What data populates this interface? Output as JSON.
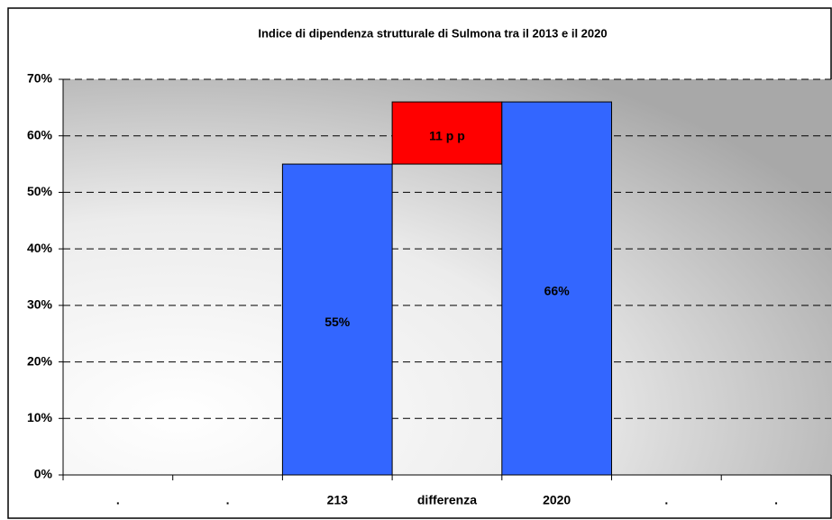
{
  "chart_data": {
    "type": "waterfall",
    "title": "Indice di dipendenza strutturale di Sulmona tra il 2013 e il 2020",
    "categories": [
      ".",
      ".",
      "213",
      "differenza",
      "2020",
      ".",
      "."
    ],
    "values": [
      null,
      null,
      55,
      11,
      66,
      null,
      null
    ],
    "value_labels": [
      null,
      null,
      "55%",
      "11 p p",
      "66%",
      null,
      null
    ],
    "measure": [
      null,
      null,
      "absolute",
      "relative",
      "absolute",
      null,
      null
    ],
    "colors": [
      null,
      null,
      "#3366ff",
      "#ff0000",
      "#3366ff",
      null,
      null
    ],
    "ylim": [
      0,
      70
    ],
    "yticks": [
      {
        "value": 0,
        "label": "0%"
      },
      {
        "value": 10,
        "label": "10%"
      },
      {
        "value": 20,
        "label": "20%"
      },
      {
        "value": 30,
        "label": "30%"
      },
      {
        "value": 40,
        "label": "40%"
      },
      {
        "value": 50,
        "label": "50%"
      },
      {
        "value": 60,
        "label": "60%"
      },
      {
        "value": 70,
        "label": "70%"
      }
    ],
    "grid": true
  }
}
